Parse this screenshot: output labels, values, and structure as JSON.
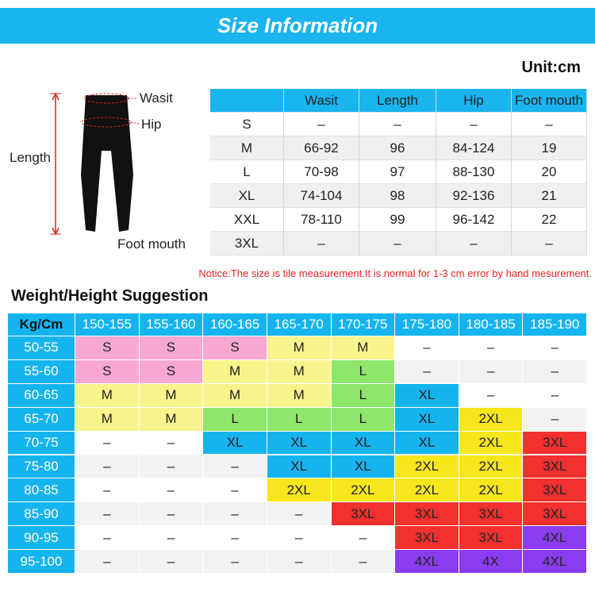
{
  "header": {
    "title": "Size Information",
    "unit": "Unit:cm"
  },
  "figure": {
    "waist": "Wasit",
    "hip": "Hip",
    "length": "Length",
    "foot": "Foot mouth"
  },
  "size_table": {
    "columns": [
      "Wasit",
      "Length",
      "Hip",
      "Foot mouth"
    ],
    "rows": [
      {
        "size": "S",
        "values": [
          "–",
          "–",
          "–",
          "–"
        ]
      },
      {
        "size": "M",
        "values": [
          "66-92",
          "96",
          "84-124",
          "19"
        ]
      },
      {
        "size": "L",
        "values": [
          "70-98",
          "97",
          "88-130",
          "20"
        ]
      },
      {
        "size": "XL",
        "values": [
          "74-104",
          "98",
          "92-136",
          "21"
        ]
      },
      {
        "size": "XXL",
        "values": [
          "78-110",
          "99",
          "96-142",
          "22"
        ]
      },
      {
        "size": "3XL",
        "values": [
          "–",
          "–",
          "–",
          "–"
        ]
      }
    ]
  },
  "notice": "Notice:The size is tile measurement.It is normal for 1-3 cm error by hand mesurement.",
  "suggestion": {
    "title": "Weight/Height Suggestion",
    "corner": "Kg/Cm",
    "columns": [
      "150-155",
      "155-160",
      "160-165",
      "165-170",
      "170-175",
      "175-180",
      "180-185",
      "185-190"
    ],
    "rows": [
      {
        "weight": "50-55",
        "cells": [
          "S",
          "S",
          "S",
          "M",
          "M",
          "–",
          "–",
          "–"
        ],
        "colors": [
          "#f7a8d2",
          "#f7a8d2",
          "#f7a8d2",
          "#f9f48e",
          "#f9f48e",
          "#ffffff",
          "#ffffff",
          "#ffffff"
        ]
      },
      {
        "weight": "55-60",
        "cells": [
          "S",
          "S",
          "M",
          "M",
          "L",
          "–",
          "–",
          "–"
        ],
        "colors": [
          "#f7a8d2",
          "#f7a8d2",
          "#f9f48e",
          "#f9f48e",
          "#8ee66a",
          "#ffffff",
          "#ffffff",
          "#ffffff"
        ]
      },
      {
        "weight": "60-65",
        "cells": [
          "M",
          "M",
          "M",
          "M",
          "L",
          "XL",
          "–",
          "–"
        ],
        "colors": [
          "#f9f48e",
          "#f9f48e",
          "#f9f48e",
          "#f9f48e",
          "#8ee66a",
          "#14b4ef",
          "#ffffff",
          "#ffffff"
        ]
      },
      {
        "weight": "65-70",
        "cells": [
          "M",
          "M",
          "L",
          "L",
          "L",
          "XL",
          "2XL",
          "–"
        ],
        "colors": [
          "#f9f48e",
          "#f9f48e",
          "#8ee66a",
          "#8ee66a",
          "#8ee66a",
          "#14b4ef",
          "#f8e61c",
          "#ffffff"
        ]
      },
      {
        "weight": "70-75",
        "cells": [
          "–",
          "–",
          "XL",
          "XL",
          "XL",
          "XL",
          "2XL",
          "3XL"
        ],
        "colors": [
          "#ffffff",
          "#ffffff",
          "#14b4ef",
          "#14b4ef",
          "#14b4ef",
          "#14b4ef",
          "#f8e61c",
          "#f2302e"
        ]
      },
      {
        "weight": "75-80",
        "cells": [
          "–",
          "–",
          "–",
          "XL",
          "XL",
          "2XL",
          "2XL",
          "3XL"
        ],
        "colors": [
          "#ffffff",
          "#ffffff",
          "#ffffff",
          "#14b4ef",
          "#14b4ef",
          "#f8e61c",
          "#f8e61c",
          "#f2302e"
        ]
      },
      {
        "weight": "80-85",
        "cells": [
          "–",
          "–",
          "–",
          "2XL",
          "2XL",
          "2XL",
          "2XL",
          "3XL"
        ],
        "colors": [
          "#ffffff",
          "#ffffff",
          "#ffffff",
          "#f8e61c",
          "#f8e61c",
          "#f8e61c",
          "#f8e61c",
          "#f2302e"
        ]
      },
      {
        "weight": "85-90",
        "cells": [
          "–",
          "–",
          "–",
          "–",
          "3XL",
          "3XL",
          "3XL",
          "3XL"
        ],
        "colors": [
          "#ffffff",
          "#ffffff",
          "#ffffff",
          "#ffffff",
          "#f2302e",
          "#f2302e",
          "#f2302e",
          "#f2302e"
        ]
      },
      {
        "weight": "90-95",
        "cells": [
          "–",
          "–",
          "–",
          "–",
          "–",
          "3XL",
          "3XL",
          "4XL"
        ],
        "colors": [
          "#ffffff",
          "#ffffff",
          "#ffffff",
          "#ffffff",
          "#ffffff",
          "#f2302e",
          "#f2302e",
          "#8a3cf0"
        ]
      },
      {
        "weight": "95-100",
        "cells": [
          "–",
          "–",
          "–",
          "–",
          "–",
          "4XL",
          "4X",
          "4XL"
        ],
        "colors": [
          "#ffffff",
          "#ffffff",
          "#ffffff",
          "#ffffff",
          "#ffffff",
          "#8a3cf0",
          "#8a3cf0",
          "#8a3cf0"
        ]
      }
    ]
  }
}
